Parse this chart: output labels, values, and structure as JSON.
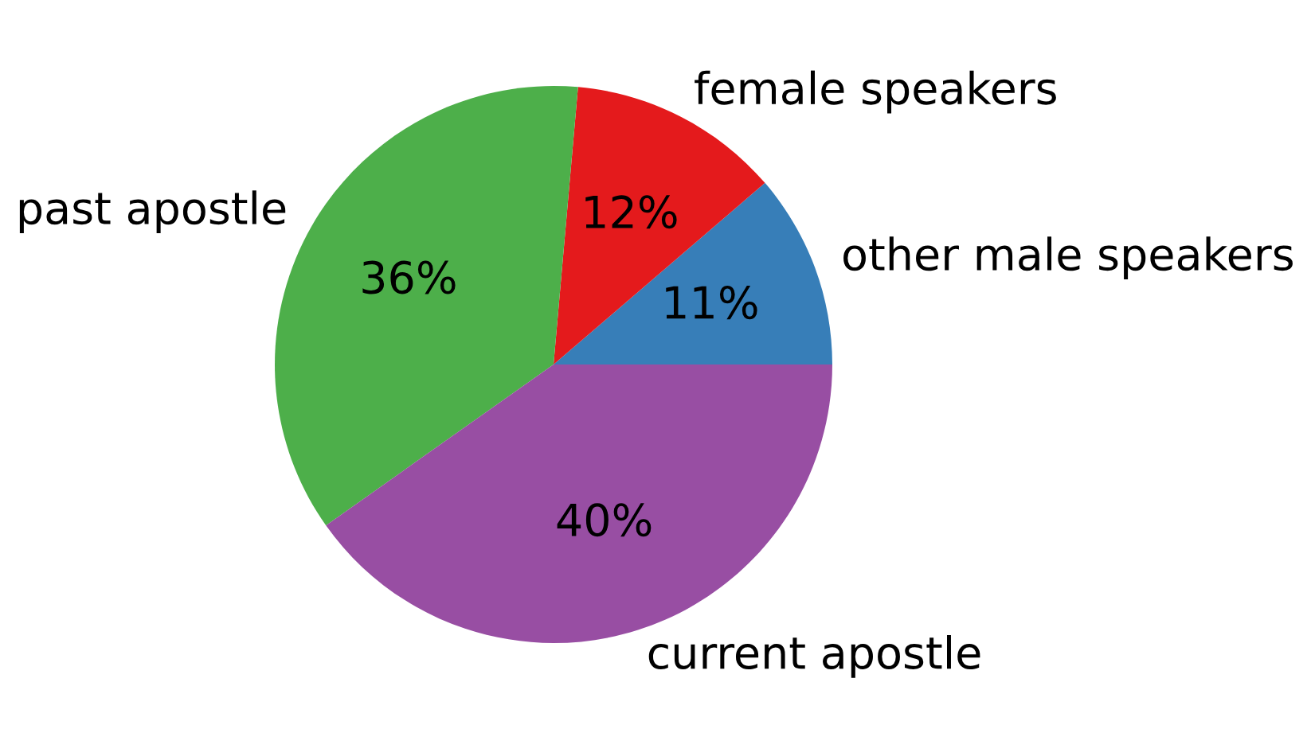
{
  "chart_data": {
    "type": "pie",
    "categories": [
      "other male speakers",
      "female speakers",
      "past apostle",
      "current apostle"
    ],
    "values": [
      11.3,
      12.3,
      36.2,
      40.2
    ],
    "colors": [
      "#377eb8",
      "#e41a1c",
      "#4daf4a",
      "#984ea3"
    ],
    "value_labels": [
      "11%",
      "12%",
      "36%",
      "40%"
    ]
  }
}
